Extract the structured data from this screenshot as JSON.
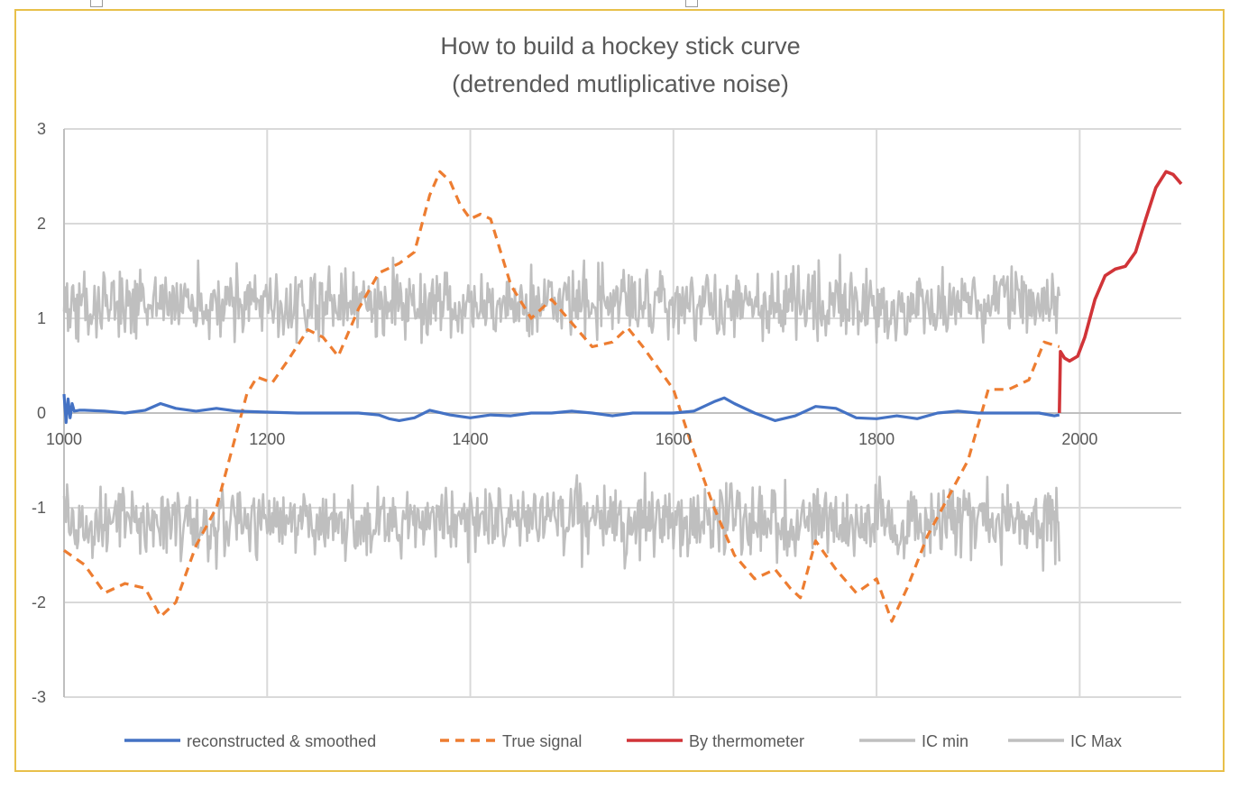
{
  "chart_data": {
    "type": "line",
    "title": [
      "How to build a hockey stick curve",
      "(detrended  mutliplicative noise)"
    ],
    "xlabel": "",
    "ylabel": "",
    "xlim": [
      1000,
      2100
    ],
    "ylim": [
      -3,
      3
    ],
    "x_ticks": [
      1000,
      1200,
      1400,
      1600,
      1800,
      2000
    ],
    "y_ticks": [
      3,
      2,
      1,
      0,
      -1,
      -2,
      -3
    ],
    "grid": true,
    "legend_position": "bottom",
    "series": [
      {
        "name": "reconstructed & smoothed",
        "color": "#4472c4",
        "style": "solid",
        "x": [
          1000,
          1002,
          1004,
          1006,
          1008,
          1010,
          1015,
          1020,
          1040,
          1060,
          1080,
          1095,
          1110,
          1130,
          1150,
          1170,
          1200,
          1230,
          1260,
          1290,
          1310,
          1320,
          1330,
          1345,
          1360,
          1380,
          1400,
          1420,
          1440,
          1460,
          1480,
          1500,
          1520,
          1540,
          1560,
          1580,
          1600,
          1620,
          1640,
          1650,
          1660,
          1680,
          1700,
          1720,
          1740,
          1760,
          1780,
          1800,
          1820,
          1840,
          1860,
          1880,
          1900,
          1920,
          1940,
          1960,
          1975,
          1980
        ],
        "y": [
          0.2,
          -0.1,
          0.15,
          -0.05,
          0.1,
          0.02,
          0.03,
          0.03,
          0.02,
          0.0,
          0.03,
          0.1,
          0.05,
          0.02,
          0.05,
          0.02,
          0.01,
          0.0,
          0.0,
          0.0,
          -0.02,
          -0.06,
          -0.08,
          -0.05,
          0.03,
          -0.02,
          -0.05,
          -0.02,
          -0.03,
          0.0,
          0.0,
          0.02,
          0.0,
          -0.03,
          0.0,
          0.0,
          0.0,
          0.02,
          0.12,
          0.16,
          0.1,
          0.0,
          -0.08,
          -0.03,
          0.07,
          0.05,
          -0.05,
          -0.06,
          -0.03,
          -0.06,
          0.0,
          0.02,
          0.0,
          0.0,
          0.0,
          0.0,
          -0.03,
          -0.02
        ]
      },
      {
        "name": "True signal",
        "color": "#ed7d31",
        "style": "dashed",
        "x": [
          1000,
          1020,
          1040,
          1060,
          1080,
          1095,
          1110,
          1130,
          1150,
          1170,
          1180,
          1190,
          1205,
          1220,
          1240,
          1255,
          1270,
          1290,
          1310,
          1330,
          1345,
          1360,
          1370,
          1380,
          1390,
          1400,
          1410,
          1420,
          1430,
          1440,
          1460,
          1480,
          1500,
          1520,
          1540,
          1555,
          1570,
          1580,
          1600,
          1620,
          1640,
          1660,
          1680,
          1700,
          1715,
          1725,
          1740,
          1760,
          1780,
          1800,
          1815,
          1830,
          1850,
          1870,
          1890,
          1910,
          1930,
          1950,
          1965,
          1980
        ],
        "y": [
          -1.45,
          -1.6,
          -1.9,
          -1.8,
          -1.85,
          -2.15,
          -2.0,
          -1.4,
          -1.0,
          -0.2,
          0.2,
          0.38,
          0.32,
          0.55,
          0.88,
          0.8,
          0.6,
          1.1,
          1.48,
          1.58,
          1.7,
          2.3,
          2.55,
          2.45,
          2.2,
          2.05,
          2.1,
          2.05,
          1.7,
          1.35,
          1.0,
          1.2,
          0.95,
          0.7,
          0.75,
          0.9,
          0.7,
          0.55,
          0.25,
          -0.4,
          -1.0,
          -1.5,
          -1.75,
          -1.65,
          -1.85,
          -1.95,
          -1.35,
          -1.65,
          -1.9,
          -1.75,
          -2.2,
          -1.85,
          -1.3,
          -0.9,
          -0.5,
          0.25,
          0.25,
          0.35,
          0.75,
          0.7
        ]
      },
      {
        "name": "By thermometer",
        "color": "#d13438",
        "style": "solid",
        "x": [
          1980,
          1981,
          1985,
          1990,
          1998,
          2005,
          2015,
          2025,
          2035,
          2045,
          2055,
          2065,
          2075,
          2085,
          2092,
          2100
        ],
        "y": [
          0.0,
          0.65,
          0.58,
          0.55,
          0.6,
          0.8,
          1.2,
          1.45,
          1.52,
          1.55,
          1.7,
          2.05,
          2.38,
          2.55,
          2.52,
          2.42
        ]
      },
      {
        "name": "IC min",
        "color": "#bfbfbf",
        "style": "solid",
        "x_range": [
          1000,
          1980
        ],
        "center": 1.15,
        "spread": 0.55
      },
      {
        "name": "IC Max",
        "color": "#bfbfbf",
        "style": "solid",
        "x_range": [
          1000,
          1980
        ],
        "center": -1.15,
        "spread": 0.55
      }
    ]
  }
}
